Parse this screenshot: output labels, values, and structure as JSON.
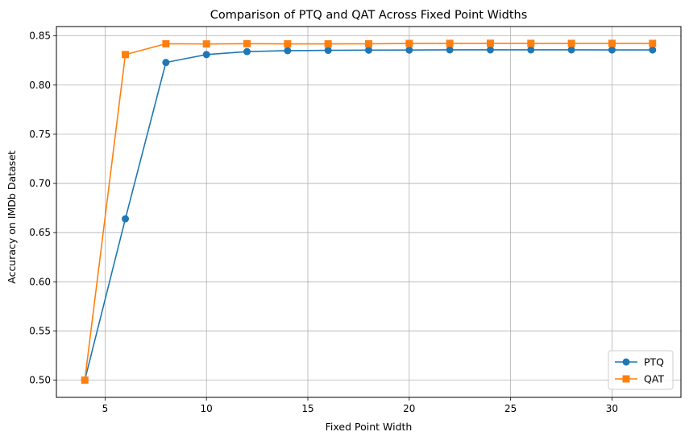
{
  "chart_data": {
    "type": "line",
    "title": "Comparison of PTQ and QAT Across Fixed Point Widths",
    "xlabel": "Fixed Point Width",
    "ylabel": "Accuracy on IMDb Dataset",
    "x": [
      4,
      6,
      8,
      10,
      12,
      14,
      16,
      18,
      20,
      22,
      24,
      26,
      28,
      30,
      32
    ],
    "xlim": [
      2.6,
      33.4
    ],
    "ylim": [
      0.4825,
      0.8595
    ],
    "xticks": [
      5,
      10,
      15,
      20,
      25,
      30
    ],
    "yticks": [
      0.5,
      0.55,
      0.6,
      0.65,
      0.7,
      0.75,
      0.8,
      0.85
    ],
    "xtick_labels": [
      "5",
      "10",
      "15",
      "20",
      "25",
      "30"
    ],
    "ytick_labels": [
      "0.50",
      "0.55",
      "0.60",
      "0.65",
      "0.70",
      "0.75",
      "0.80",
      "0.85"
    ],
    "grid": true,
    "legend_position": "lower-right",
    "series": [
      {
        "name": "PTQ",
        "color": "#1f77b4",
        "marker": "circle",
        "values": [
          0.5,
          0.664,
          0.823,
          0.831,
          0.834,
          0.835,
          0.8353,
          0.8355,
          0.8356,
          0.8358,
          0.8358,
          0.8358,
          0.8358,
          0.8357,
          0.8357
        ]
      },
      {
        "name": "QAT",
        "color": "#ff7f0e",
        "marker": "square",
        "values": [
          0.5,
          0.831,
          0.842,
          0.8418,
          0.8421,
          0.8419,
          0.8419,
          0.842,
          0.8423,
          0.8424,
          0.8425,
          0.8424,
          0.8424,
          0.8424,
          0.8424
        ]
      }
    ]
  }
}
